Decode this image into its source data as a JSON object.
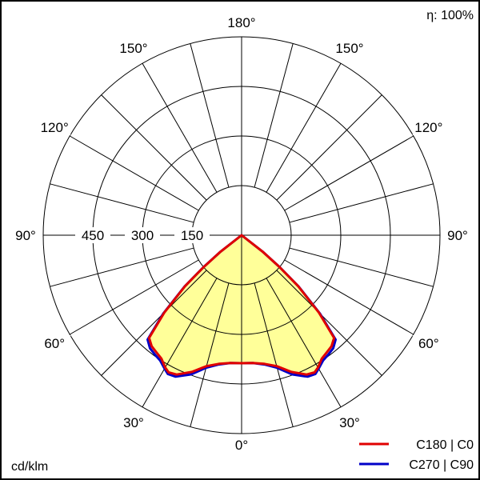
{
  "chart_data": {
    "type": "polar-line",
    "unit_label": "cd/klm",
    "efficiency_label": "η: 100%",
    "radial_ticks": [
      150,
      300,
      450
    ],
    "radial_max": 600,
    "angle_labels": [
      "0°",
      "30°",
      "60°",
      "90°",
      "120°",
      "150°",
      "180°",
      "150°",
      "120°",
      "90°",
      "60°",
      "30°"
    ],
    "angle_step_deg": 15,
    "grid": true,
    "legend_position": "bottom-right",
    "series": [
      {
        "name": "C180 | C0",
        "color": "#e00000",
        "angles_deg": [
          0,
          5,
          10,
          15,
          20,
          25,
          28,
          30,
          33,
          36,
          39,
          42,
          45,
          48,
          50,
          52,
          55
        ],
        "values": [
          387,
          388,
          395,
          410,
          440,
          465,
          470,
          462,
          445,
          438,
          432,
          418,
          330,
          230,
          150,
          80,
          0
        ]
      },
      {
        "name": "C270 | C90",
        "color": "#0000c8",
        "angles_deg": [
          0,
          5,
          10,
          15,
          20,
          25,
          28,
          30,
          33,
          36,
          39,
          42,
          45,
          48,
          50,
          52,
          55
        ],
        "values": [
          387,
          388,
          397,
          415,
          448,
          472,
          475,
          466,
          452,
          446,
          440,
          425,
          335,
          232,
          152,
          80,
          0
        ]
      }
    ],
    "fill_color": "#ffff99"
  }
}
